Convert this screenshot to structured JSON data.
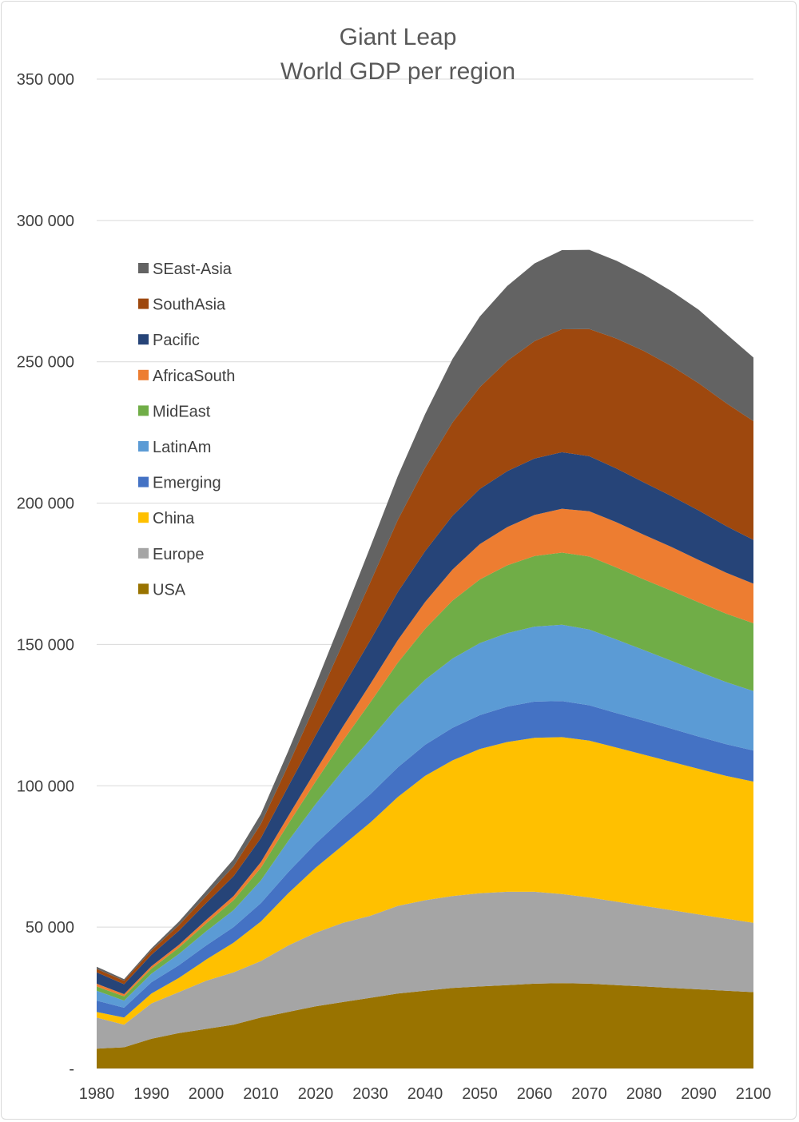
{
  "chart_data": {
    "type": "area",
    "stacked": true,
    "title": "Giant Leap",
    "subtitle": "World GDP per region",
    "x": [
      1980,
      1985,
      1990,
      1995,
      2000,
      2005,
      2010,
      2015,
      2020,
      2025,
      2030,
      2035,
      2040,
      2045,
      2050,
      2055,
      2060,
      2065,
      2070,
      2075,
      2080,
      2085,
      2090,
      2095,
      2100
    ],
    "x_tick_labels": [
      "1980",
      "1990",
      "2000",
      "2010",
      "2020",
      "2030",
      "2040",
      "2050",
      "2060",
      "2070",
      "2080",
      "2090",
      "2100"
    ],
    "y_tick_labels": [
      "-",
      "50 000",
      "100 000",
      "150 000",
      "200 000",
      "250 000",
      "300 000",
      "350 000"
    ],
    "ylim": [
      0,
      350000
    ],
    "grid": true,
    "legend_position": "left",
    "series": [
      {
        "name": "USA",
        "color": "#997300",
        "values": [
          7000,
          7500,
          10500,
          12500,
          14000,
          15500,
          18000,
          20000,
          22000,
          23500,
          25000,
          26500,
          27500,
          28500,
          29000,
          29500,
          30000,
          30200,
          30000,
          29500,
          29000,
          28500,
          28000,
          27500,
          27000
        ]
      },
      {
        "name": "Europe",
        "color": "#a5a5a5",
        "values": [
          11000,
          8000,
          12500,
          14500,
          17000,
          18500,
          20000,
          23500,
          26000,
          28000,
          29000,
          31000,
          32000,
          32500,
          33000,
          33000,
          32500,
          31500,
          30500,
          29500,
          28500,
          27500,
          26500,
          25500,
          24500
        ]
      },
      {
        "name": "China",
        "color": "#ffc000",
        "values": [
          2000,
          2500,
          3500,
          5000,
          7500,
          10500,
          14000,
          18500,
          23000,
          27500,
          33000,
          38500,
          44000,
          48000,
          51000,
          53000,
          54500,
          55500,
          55500,
          54500,
          53500,
          52500,
          51500,
          50500,
          50000
        ]
      },
      {
        "name": "Emerging",
        "color": "#4472c4",
        "values": [
          4000,
          3500,
          4000,
          4500,
          5000,
          5500,
          6500,
          7500,
          8500,
          9500,
          10000,
          10500,
          11000,
          11500,
          12000,
          12500,
          12800,
          12800,
          12500,
          12200,
          12000,
          11700,
          11400,
          11200,
          11000
        ]
      },
      {
        "name": "LatinAm",
        "color": "#5b9bd5",
        "values": [
          3500,
          2500,
          3000,
          4000,
          5000,
          6000,
          8000,
          11000,
          14000,
          17000,
          19500,
          21500,
          23000,
          24500,
          25500,
          26000,
          26500,
          27000,
          26800,
          26000,
          25000,
          24000,
          23000,
          22000,
          21000
        ]
      },
      {
        "name": "MidEast",
        "color": "#70ad47",
        "values": [
          1500,
          1500,
          1800,
          2200,
          2800,
          3500,
          4500,
          6000,
          8000,
          10500,
          13000,
          15500,
          18000,
          20500,
          22500,
          24000,
          25000,
          25500,
          25800,
          25500,
          25000,
          24800,
          24500,
          24200,
          24000
        ]
      },
      {
        "name": "AfricaSouth",
        "color": "#ed7d31",
        "values": [
          1000,
          800,
          900,
          1000,
          1200,
          1500,
          2000,
          2800,
          3800,
          5000,
          6500,
          8000,
          9500,
          11000,
          12500,
          13500,
          14500,
          15500,
          16000,
          16000,
          15800,
          15500,
          15000,
          14500,
          14000
        ]
      },
      {
        "name": "Pacific",
        "color": "#264478",
        "values": [
          4000,
          3500,
          4000,
          5000,
          6000,
          7000,
          8500,
          10500,
          12500,
          14000,
          15500,
          17000,
          18000,
          19000,
          19500,
          19800,
          20000,
          20000,
          19500,
          19000,
          18500,
          18000,
          17500,
          16500,
          15500
        ]
      },
      {
        "name": "SouthAsia",
        "color": "#9e480e",
        "values": [
          1200,
          1200,
          1500,
          2000,
          2500,
          3500,
          5000,
          7500,
          11000,
          15500,
          20500,
          25500,
          29500,
          33000,
          36000,
          39000,
          41500,
          43500,
          45000,
          46000,
          46500,
          46000,
          45000,
          43500,
          42000
        ]
      },
      {
        "name": "SEast-Asia",
        "color": "#636363",
        "values": [
          800,
          600,
          800,
          1200,
          1800,
          2500,
          3500,
          5000,
          7000,
          9500,
          12500,
          15500,
          19000,
          22500,
          25000,
          26500,
          27500,
          28000,
          28000,
          27500,
          27000,
          26500,
          26000,
          24500,
          22500
        ]
      }
    ]
  }
}
